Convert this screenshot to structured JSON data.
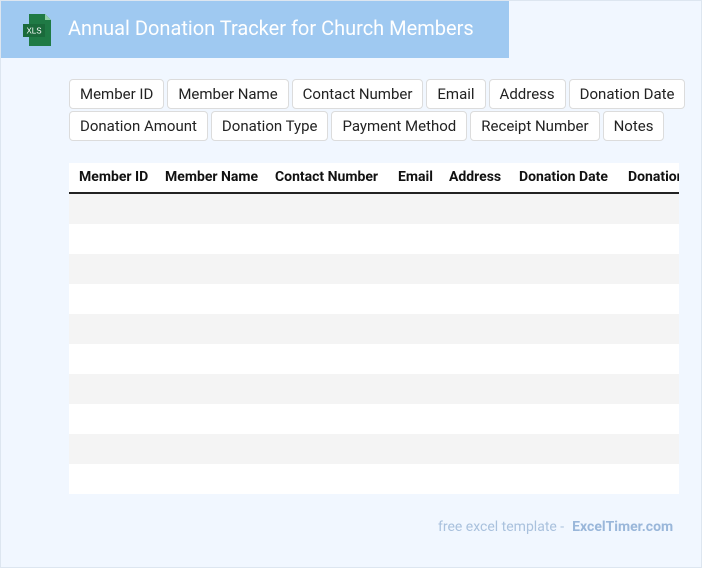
{
  "header": {
    "icon_label": "XLS",
    "title": "Annual Donation Tracker for Church Members"
  },
  "fields": [
    "Member ID",
    "Member Name",
    "Contact Number",
    "Email",
    "Address",
    "Donation Date",
    "Donation Amount",
    "Donation Type",
    "Payment Method",
    "Receipt Number",
    "Notes"
  ],
  "table": {
    "columns": [
      "Member ID",
      "Member Name",
      "Contact Number",
      "Email",
      "Address",
      "Donation Date",
      "Donation Amount"
    ]
  },
  "footer": {
    "text": "free excel template -",
    "link": "ExcelTimer.com"
  }
}
